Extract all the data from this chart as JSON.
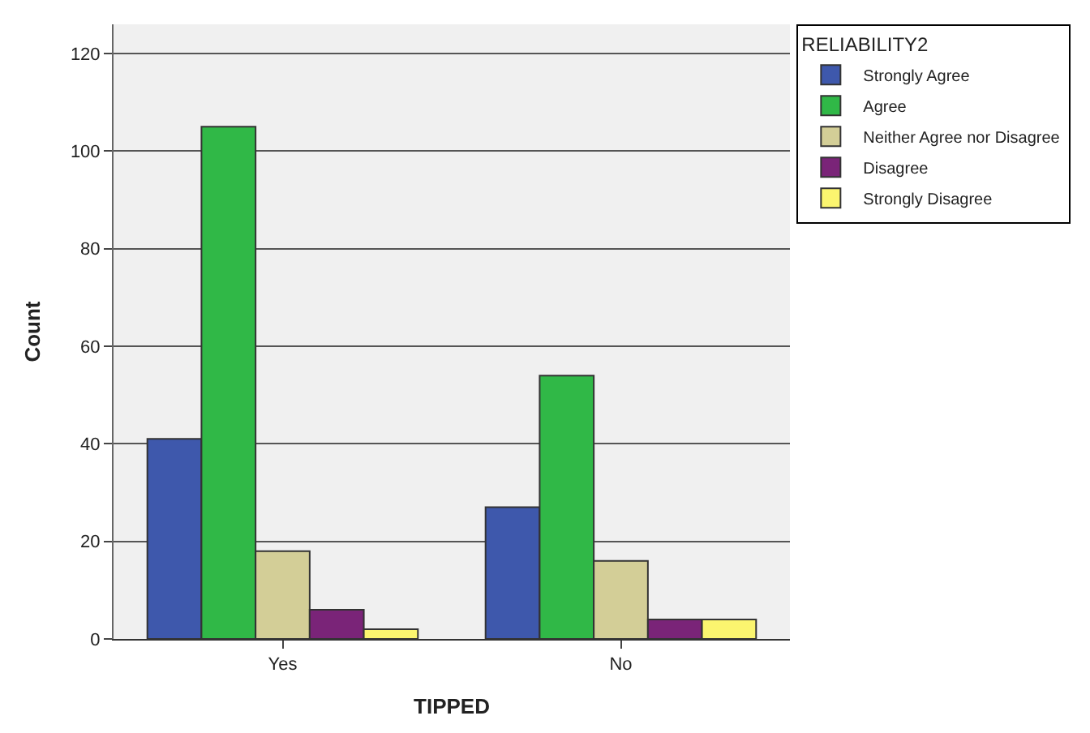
{
  "chart_data": {
    "type": "bar",
    "xlabel": "TIPPED",
    "ylabel": "Count",
    "legend_title": "RELIABILITY2",
    "categories": [
      "Yes",
      "No"
    ],
    "series": [
      {
        "name": "Strongly Agree",
        "color": "#3e58ac",
        "values": [
          41,
          27
        ]
      },
      {
        "name": "Agree",
        "color": "#30b847",
        "values": [
          105,
          54
        ]
      },
      {
        "name": "Neither Agree nor Disagree",
        "color": "#d3ce97",
        "values": [
          18,
          16
        ]
      },
      {
        "name": "Disagree",
        "color": "#7a2478",
        "values": [
          6,
          4
        ]
      },
      {
        "name": "Strongly Disagree",
        "color": "#fbf56f",
        "values": [
          2,
          4
        ]
      }
    ],
    "ylim": [
      0,
      126
    ],
    "yticks": [
      0,
      20,
      40,
      60,
      80,
      100,
      120
    ],
    "grid": "y",
    "legend": "top right"
  }
}
